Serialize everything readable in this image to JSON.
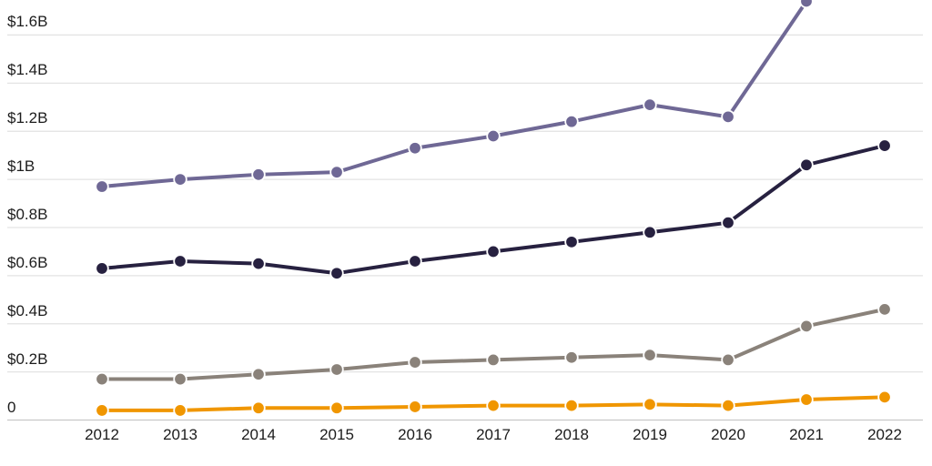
{
  "chart_data": {
    "type": "line",
    "title": "",
    "xlabel": "",
    "ylabel": "",
    "x": [
      2012,
      2013,
      2014,
      2015,
      2016,
      2017,
      2018,
      2019,
      2020,
      2021,
      2022
    ],
    "x_tick_labels": [
      "2012",
      "2013",
      "2014",
      "2015",
      "2016",
      "2017",
      "2018",
      "2019",
      "2020",
      "2021",
      "2022"
    ],
    "y_ticks": [
      {
        "label": "$1.6B",
        "value": 1.6
      },
      {
        "label": "$1.4B",
        "value": 1.4
      },
      {
        "label": "$1.2B",
        "value": 1.2
      },
      {
        "label": "$1B",
        "value": 1.0
      },
      {
        "label": "$0.8B",
        "value": 0.8
      },
      {
        "label": "$0.6B",
        "value": 0.6
      },
      {
        "label": "$0.4B",
        "value": 0.4
      },
      {
        "label": "$0.2B",
        "value": 0.2
      },
      {
        "label": "0",
        "value": 0
      }
    ],
    "unit": "USD billions",
    "ylim": [
      0,
      1.745
    ],
    "grid": "horizontal",
    "legend_position": "none",
    "series": [
      {
        "name": "purple-series",
        "color": "#6F6895",
        "values": [
          0.97,
          1.0,
          1.02,
          1.03,
          1.13,
          1.18,
          1.24,
          1.31,
          1.26,
          1.74,
          null
        ],
        "note": "2022 value rises off the top of the chart and is not visible; 2021 marker is clipped at the top edge"
      },
      {
        "name": "navy-series",
        "color": "#272140",
        "values": [
          0.63,
          0.66,
          0.65,
          0.61,
          0.66,
          0.7,
          0.74,
          0.78,
          0.82,
          1.06,
          1.14
        ]
      },
      {
        "name": "gray-series",
        "color": "#8A827A",
        "values": [
          0.17,
          0.17,
          0.19,
          0.21,
          0.24,
          0.25,
          0.26,
          0.27,
          0.25,
          0.39,
          0.46
        ]
      },
      {
        "name": "orange-series",
        "color": "#F09600",
        "values": [
          0.04,
          0.04,
          0.05,
          0.05,
          0.055,
          0.06,
          0.06,
          0.065,
          0.06,
          0.085,
          0.095
        ]
      }
    ]
  },
  "colors": {
    "background": "#ffffff",
    "gridline": "#e3e3e3",
    "baseline": "#c8c8c8",
    "tick_text": "#1c1c1c",
    "marker_halo": "#ffffff"
  }
}
